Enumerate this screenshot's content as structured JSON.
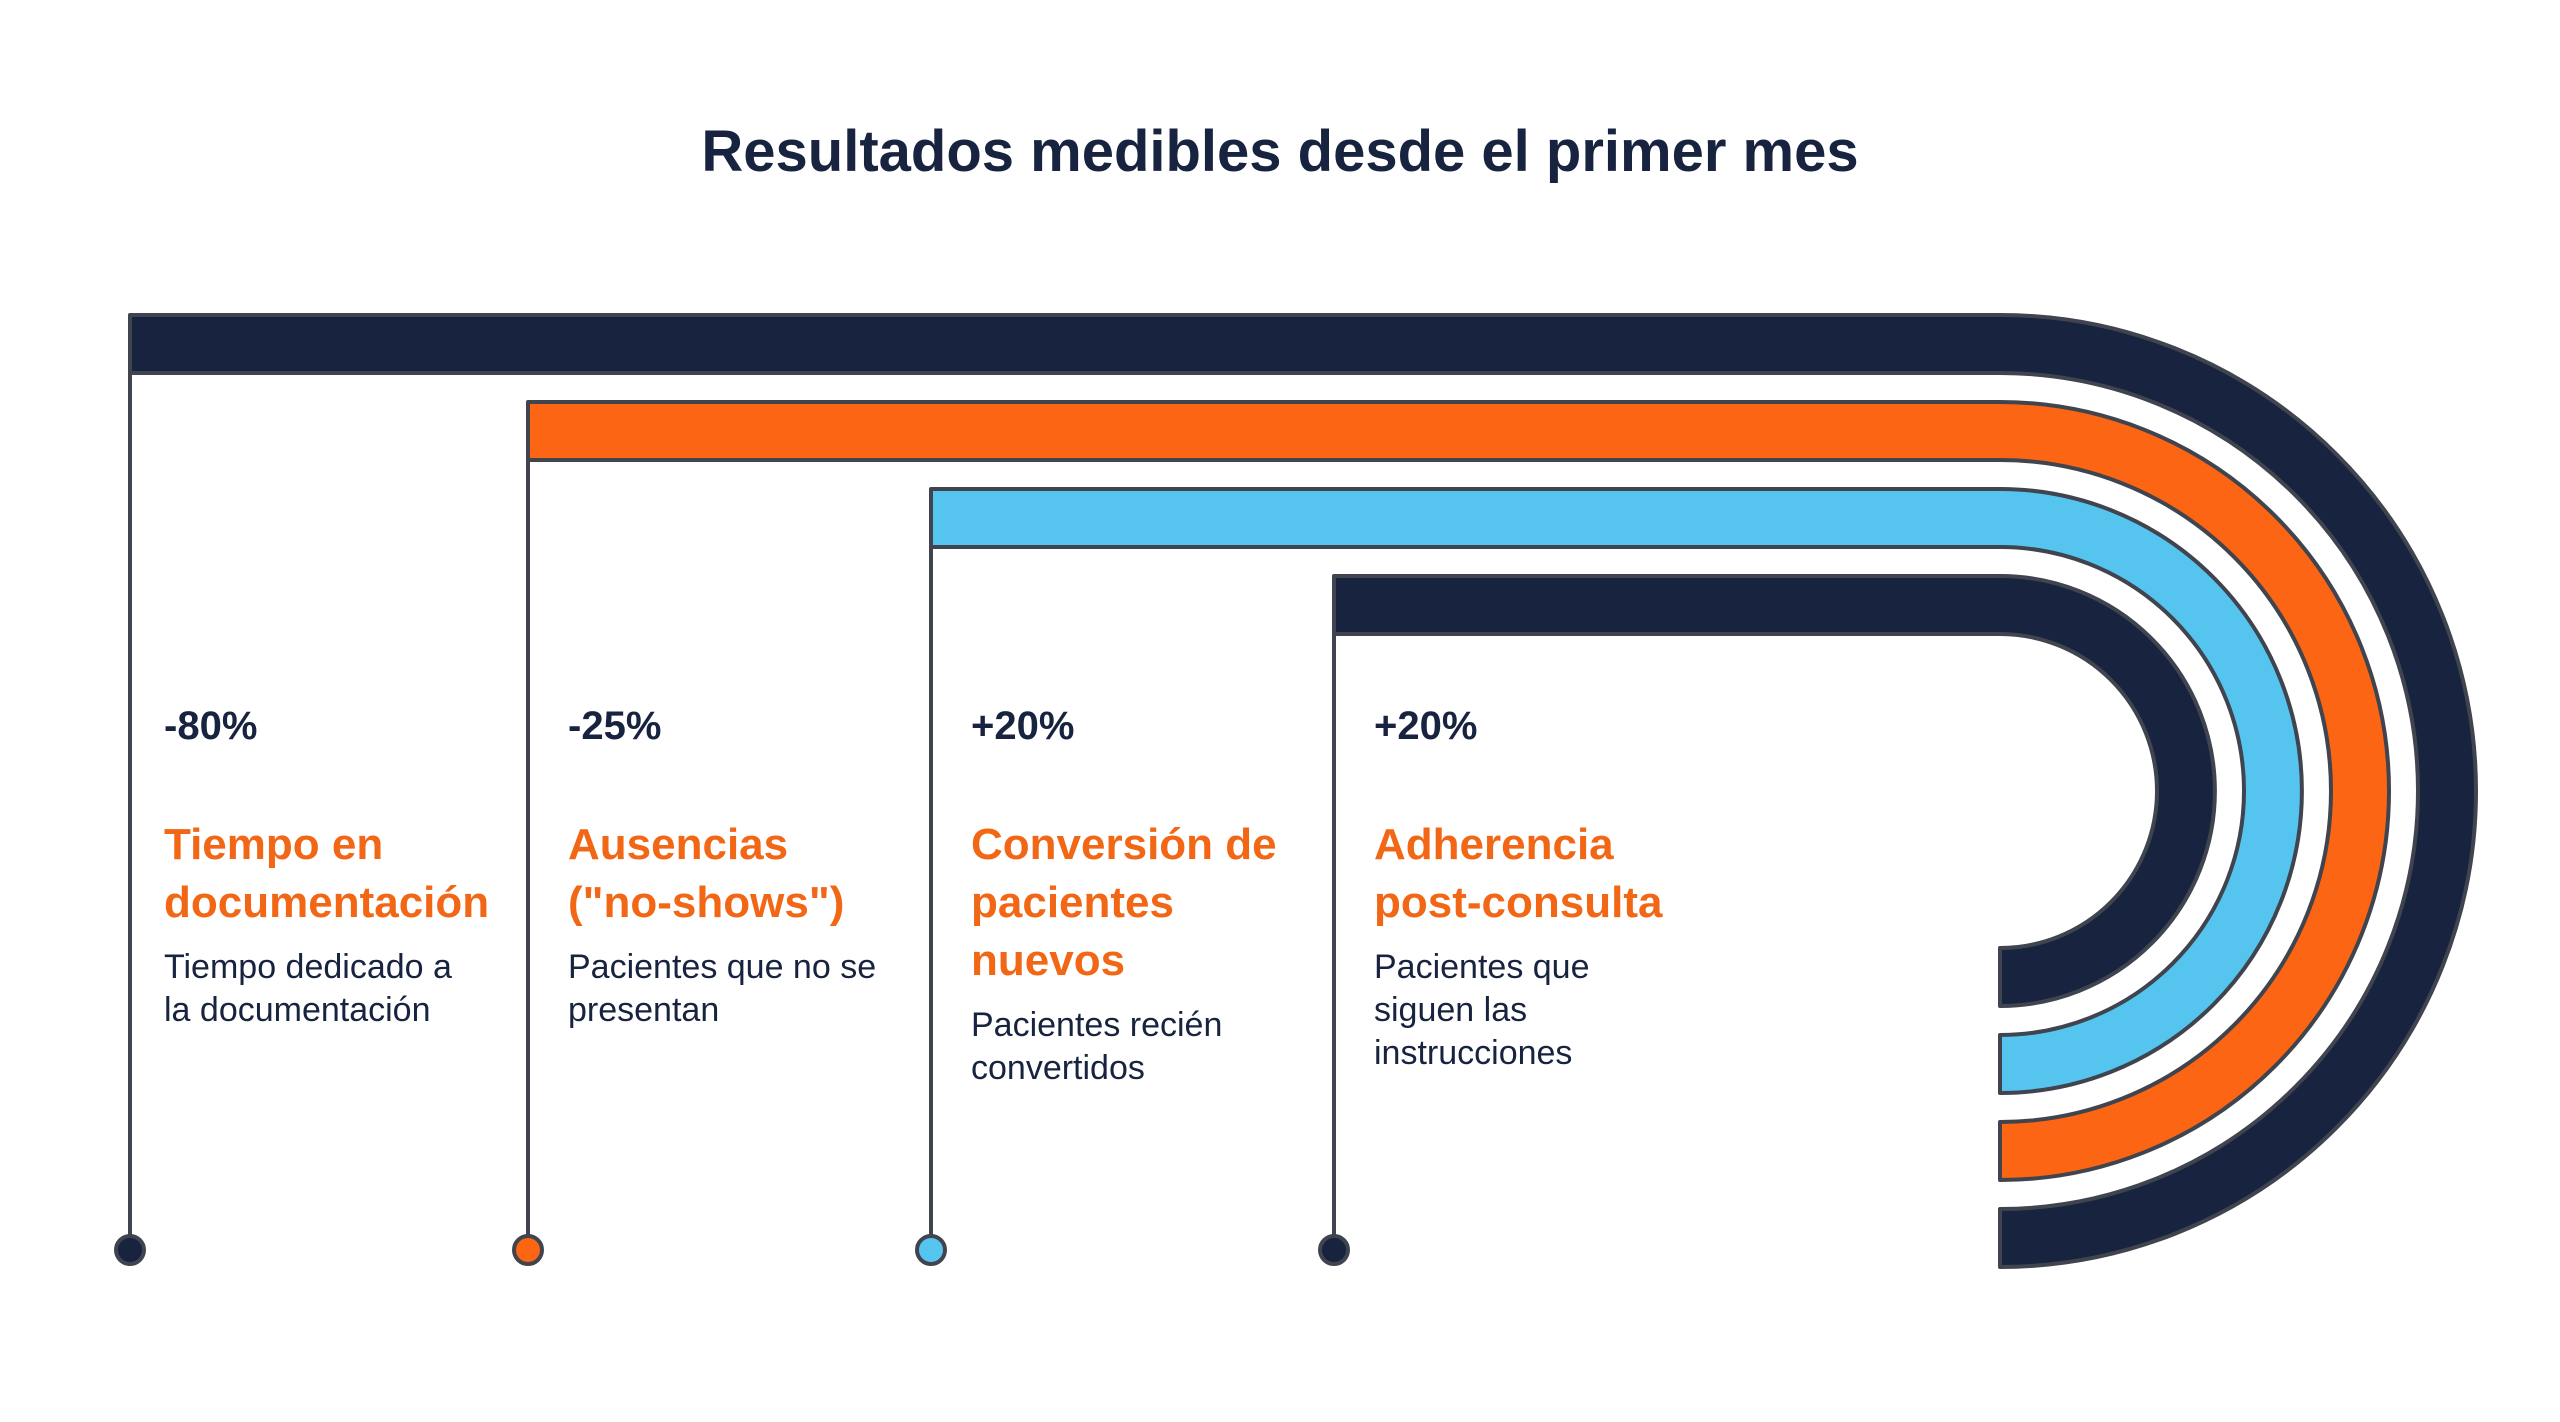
{
  "title": "Resultados medibles desde el primer mes",
  "colors": {
    "navy": "#17233f",
    "orange": "#fc6514",
    "light_blue": "#55c5ef",
    "outline": "#3f444e",
    "label_orange": "#f26715"
  },
  "items": [
    {
      "value": "-80%",
      "label": "Tiempo en\ndocumentación",
      "description": "Tiempo dedicado a\nla documentación",
      "color": "navy"
    },
    {
      "value": "-25%",
      "label": "Ausencias\n(\"no-shows\")",
      "description": "Pacientes que no se\npresentan",
      "color": "orange"
    },
    {
      "value": "+20%",
      "label": "Conversión de\npacientes\nnuevos",
      "description": "Pacientes recién\nconvertidos",
      "color": "light_blue"
    },
    {
      "value": "+20%",
      "label": "Adherencia\npost-consulta",
      "description": "Pacientes que\nsiguen las\ninstrucciones",
      "color": "navy"
    }
  ]
}
